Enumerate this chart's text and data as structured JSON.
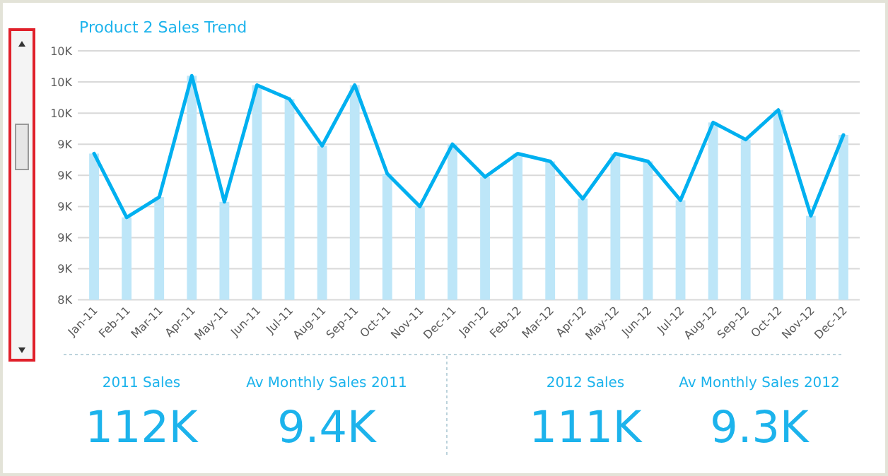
{
  "chart_data": {
    "type": "bar",
    "title": "Product 2 Sales Trend",
    "categories": [
      "Jan-11",
      "Feb-11",
      "Mar-11",
      "Apr-11",
      "May-11",
      "Jun-11",
      "Jul-11",
      "Aug-11",
      "Sep-11",
      "Oct-11",
      "Nov-11",
      "Dec-11",
      "Jan-12",
      "Feb-12",
      "Mar-12",
      "Apr-12",
      "May-12",
      "Jun-12",
      "Jul-12",
      "Aug-12",
      "Sep-12",
      "Oct-12",
      "Nov-12",
      "Dec-12"
    ],
    "series": [
      {
        "color": "#bde6f8",
        "values": [
          9340,
          8930,
          9060,
          9840,
          9030,
          9780,
          9690,
          9390,
          9780,
          9210,
          9000,
          9400,
          9190,
          9340,
          9290,
          9050,
          9340,
          9290,
          9040,
          9540,
          9430,
          9620,
          8940,
          9460
        ]
      },
      {
        "type": "line",
        "color": "#00b0f0",
        "values": [
          9340,
          8930,
          9060,
          9840,
          9030,
          9780,
          9690,
          9390,
          9780,
          9210,
          9000,
          9400,
          9190,
          9340,
          9290,
          9050,
          9340,
          9290,
          9040,
          9540,
          9430,
          9620,
          8940,
          9460
        ]
      }
    ],
    "ylim": [
      8400,
      10000
    ],
    "yticks": [
      {
        "value": 8400,
        "label": "8K"
      },
      {
        "value": 8600,
        "label": "9K"
      },
      {
        "value": 8800,
        "label": "9K"
      },
      {
        "value": 9000,
        "label": "9K"
      },
      {
        "value": 9200,
        "label": "9K"
      },
      {
        "value": 9400,
        "label": "9K"
      },
      {
        "value": 9600,
        "label": "10K"
      },
      {
        "value": 9800,
        "label": "10K"
      },
      {
        "value": 10000,
        "label": "10K"
      }
    ],
    "grid": "y",
    "annotations": [
      "2011 Sales",
      "112K",
      "Av Monthly Sales 2011",
      "9.4K",
      "2012 Sales",
      "111K",
      "Av Monthly Sales 2012",
      "9.3K"
    ]
  }
}
